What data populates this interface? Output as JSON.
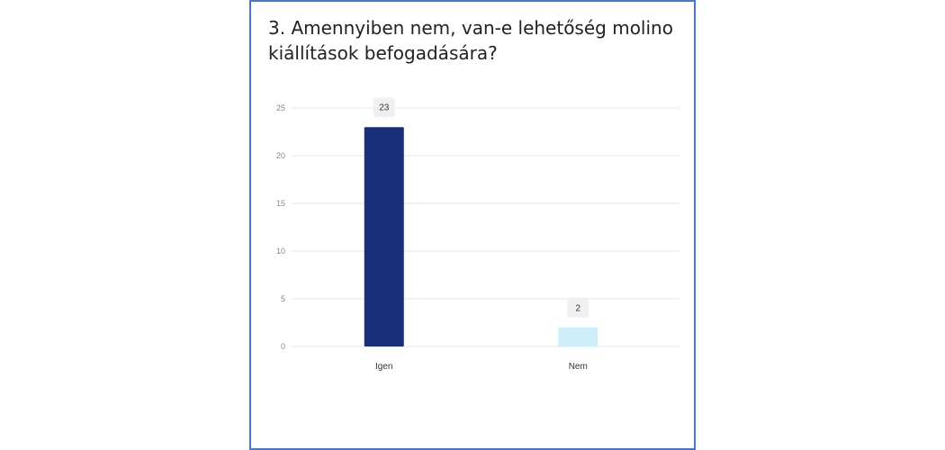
{
  "chart_data": {
    "type": "bar",
    "title": "3. Amennyiben nem, van-e lehetőség molino kiállítások befogadására?",
    "categories": [
      "Igen",
      "Nem"
    ],
    "values": [
      23,
      2
    ],
    "colors": [
      "#1a2f7a",
      "#cdeefa"
    ],
    "ylim": [
      0,
      25
    ],
    "yticks": [
      0,
      5,
      10,
      15,
      20,
      25
    ],
    "grid": true,
    "xlabel": "",
    "ylabel": ""
  }
}
